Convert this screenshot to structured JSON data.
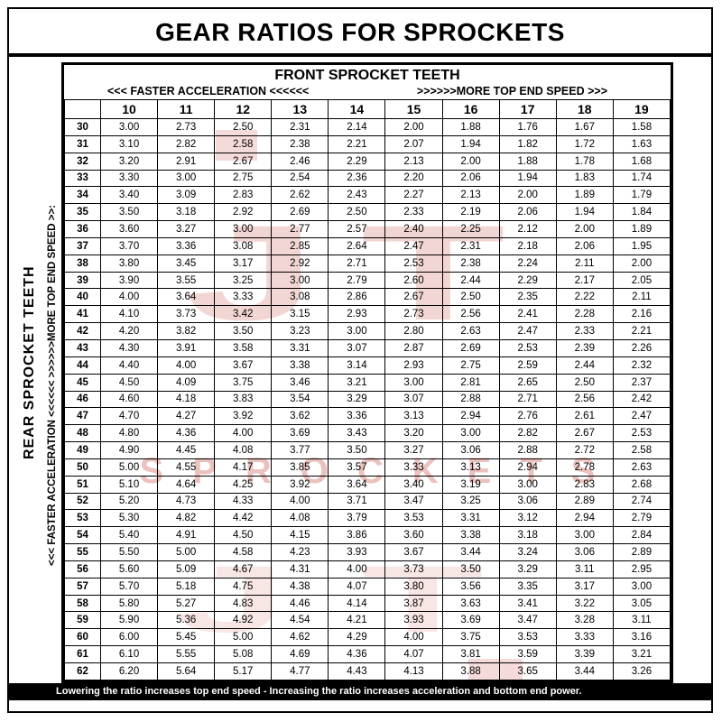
{
  "title": "GEAR RATIOS FOR SPROCKETS",
  "header": {
    "front_sprocket": "FRONT SPROCKET TEETH",
    "faster_acceleration": "<<< FASTER  ACCELERATION  <<<<<<",
    "more_top_end": ">>>>>>MORE TOP END SPEED >>>"
  },
  "left_labels": {
    "rear_sprocket": "REAR SPROCKET TEETH",
    "direction": "<<< FASTER  ACCELERATION <<<<<<        >>>>>>MORE TOP END SPEED >>:"
  },
  "footer": {
    "note": "Lowering the ratio increases top end speed - Increasing the ratio increases acceleration and bottom end power."
  },
  "watermark": {
    "big_text": "JT",
    "sub_text": "SPROCKETS",
    "color": "#c0392b"
  },
  "chart_data": {
    "type": "table",
    "title": "GEAR RATIOS FOR SPROCKETS",
    "col_header_label": "FRONT SPROCKET TEETH",
    "row_header_label": "REAR SPROCKET TEETH",
    "front_teeth": [
      10,
      11,
      12,
      13,
      14,
      15,
      16,
      17,
      18,
      19
    ],
    "rear_teeth": [
      30,
      31,
      32,
      33,
      34,
      35,
      36,
      37,
      38,
      39,
      40,
      41,
      42,
      43,
      44,
      45,
      46,
      47,
      48,
      49,
      50,
      51,
      52,
      53,
      54,
      55,
      56,
      57,
      58,
      59,
      60,
      61,
      62
    ],
    "ratios": [
      [
        "3.00",
        "2.73",
        "2.50",
        "2.31",
        "2.14",
        "2.00",
        "1.88",
        "1.76",
        "1.67",
        "1.58"
      ],
      [
        "3.10",
        "2.82",
        "2.58",
        "2.38",
        "2.21",
        "2.07",
        "1.94",
        "1.82",
        "1.72",
        "1.63"
      ],
      [
        "3.20",
        "2.91",
        "2.67",
        "2.46",
        "2.29",
        "2.13",
        "2.00",
        "1.88",
        "1.78",
        "1.68"
      ],
      [
        "3.30",
        "3.00",
        "2.75",
        "2.54",
        "2.36",
        "2.20",
        "2.06",
        "1.94",
        "1.83",
        "1.74"
      ],
      [
        "3.40",
        "3.09",
        "2.83",
        "2.62",
        "2.43",
        "2.27",
        "2.13",
        "2.00",
        "1.89",
        "1.79"
      ],
      [
        "3.50",
        "3.18",
        "2.92",
        "2.69",
        "2.50",
        "2.33",
        "2.19",
        "2.06",
        "1.94",
        "1.84"
      ],
      [
        "3.60",
        "3.27",
        "3.00",
        "2.77",
        "2.57",
        "2.40",
        "2.25",
        "2.12",
        "2.00",
        "1.89"
      ],
      [
        "3.70",
        "3.36",
        "3.08",
        "2.85",
        "2.64",
        "2.47",
        "2.31",
        "2.18",
        "2.06",
        "1.95"
      ],
      [
        "3.80",
        "3.45",
        "3.17",
        "2.92",
        "2.71",
        "2.53",
        "2.38",
        "2.24",
        "2.11",
        "2.00"
      ],
      [
        "3.90",
        "3.55",
        "3.25",
        "3.00",
        "2.79",
        "2.60",
        "2.44",
        "2.29",
        "2.17",
        "2.05"
      ],
      [
        "4.00",
        "3.64",
        "3.33",
        "3.08",
        "2.86",
        "2.67",
        "2.50",
        "2.35",
        "2.22",
        "2.11"
      ],
      [
        "4.10",
        "3.73",
        "3.42",
        "3.15",
        "2.93",
        "2.73",
        "2.56",
        "2.41",
        "2.28",
        "2.16"
      ],
      [
        "4.20",
        "3.82",
        "3.50",
        "3.23",
        "3.00",
        "2.80",
        "2.63",
        "2.47",
        "2.33",
        "2.21"
      ],
      [
        "4.30",
        "3.91",
        "3.58",
        "3.31",
        "3.07",
        "2.87",
        "2.69",
        "2.53",
        "2.39",
        "2.26"
      ],
      [
        "4.40",
        "4.00",
        "3.67",
        "3.38",
        "3.14",
        "2.93",
        "2.75",
        "2.59",
        "2.44",
        "2.32"
      ],
      [
        "4.50",
        "4.09",
        "3.75",
        "3.46",
        "3.21",
        "3.00",
        "2.81",
        "2.65",
        "2.50",
        "2.37"
      ],
      [
        "4.60",
        "4.18",
        "3.83",
        "3.54",
        "3.29",
        "3.07",
        "2.88",
        "2.71",
        "2.56",
        "2.42"
      ],
      [
        "4.70",
        "4.27",
        "3.92",
        "3.62",
        "3.36",
        "3.13",
        "2.94",
        "2.76",
        "2.61",
        "2.47"
      ],
      [
        "4.80",
        "4.36",
        "4.00",
        "3.69",
        "3.43",
        "3.20",
        "3.00",
        "2.82",
        "2.67",
        "2.53"
      ],
      [
        "4.90",
        "4.45",
        "4.08",
        "3.77",
        "3.50",
        "3.27",
        "3.06",
        "2.88",
        "2.72",
        "2.58"
      ],
      [
        "5.00",
        "4.55",
        "4.17",
        "3.85",
        "3.57",
        "3.33",
        "3.13",
        "2.94",
        "2.78",
        "2.63"
      ],
      [
        "5.10",
        "4.64",
        "4.25",
        "3.92",
        "3.64",
        "3.40",
        "3.19",
        "3.00",
        "2.83",
        "2.68"
      ],
      [
        "5.20",
        "4.73",
        "4.33",
        "4.00",
        "3.71",
        "3.47",
        "3.25",
        "3.06",
        "2.89",
        "2.74"
      ],
      [
        "5.30",
        "4.82",
        "4.42",
        "4.08",
        "3.79",
        "3.53",
        "3.31",
        "3.12",
        "2.94",
        "2.79"
      ],
      [
        "5.40",
        "4.91",
        "4.50",
        "4.15",
        "3.86",
        "3.60",
        "3.38",
        "3.18",
        "3.00",
        "2.84"
      ],
      [
        "5.50",
        "5.00",
        "4.58",
        "4.23",
        "3.93",
        "3.67",
        "3.44",
        "3.24",
        "3.06",
        "2.89"
      ],
      [
        "5.60",
        "5.09",
        "4.67",
        "4.31",
        "4.00",
        "3.73",
        "3.50",
        "3.29",
        "3.11",
        "2.95"
      ],
      [
        "5.70",
        "5.18",
        "4.75",
        "4.38",
        "4.07",
        "3.80",
        "3.56",
        "3.35",
        "3.17",
        "3.00"
      ],
      [
        "5.80",
        "5.27",
        "4.83",
        "4.46",
        "4.14",
        "3.87",
        "3.63",
        "3.41",
        "3.22",
        "3.05"
      ],
      [
        "5.90",
        "5.36",
        "4.92",
        "4.54",
        "4.21",
        "3.93",
        "3.69",
        "3.47",
        "3.28",
        "3.11"
      ],
      [
        "6.00",
        "5.45",
        "5.00",
        "4.62",
        "4.29",
        "4.00",
        "3.75",
        "3.53",
        "3.33",
        "3.16"
      ],
      [
        "6.10",
        "5.55",
        "5.08",
        "4.69",
        "4.36",
        "4.07",
        "3.81",
        "3.59",
        "3.39",
        "3.21"
      ],
      [
        "6.20",
        "5.64",
        "5.17",
        "4.77",
        "4.43",
        "4.13",
        "3.88",
        "3.65",
        "3.44",
        "3.26"
      ]
    ]
  }
}
